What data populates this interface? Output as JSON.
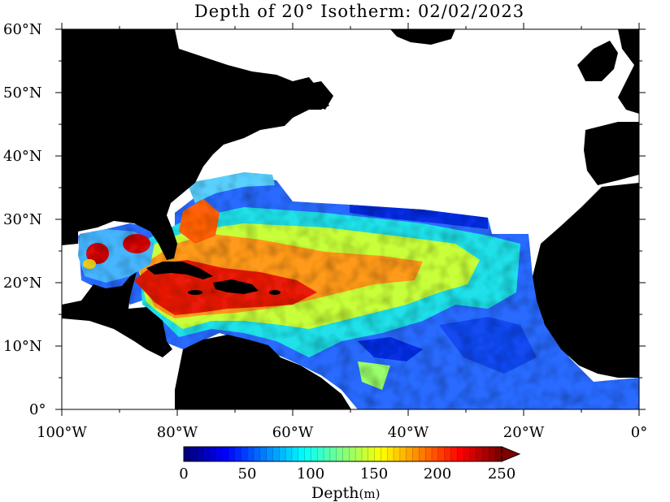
{
  "title": "Depth of 20° Isotherm: 02/02/2023",
  "y_axis_labels": [
    "60°N",
    "50°N",
    "40°N",
    "30°N",
    "20°N",
    "10°N",
    "0°"
  ],
  "x_axis_labels": [
    "100°W",
    "80°W",
    "60°W",
    "40°W",
    "20°W",
    "0°"
  ],
  "colorbar": {
    "tick_labels": [
      "0",
      "50",
      "100",
      "150",
      "200",
      "250"
    ],
    "title": "Depth",
    "unit": "(m)",
    "min": 0,
    "max": 250,
    "extend": "max",
    "colors": [
      "#000080",
      "#0000ff",
      "#0080ff",
      "#00ffff",
      "#80ff80",
      "#ffff00",
      "#ff8000",
      "#ff0000",
      "#800000"
    ]
  },
  "map": {
    "lon_range": [
      -100,
      0
    ],
    "lat_range": [
      0,
      60
    ],
    "land_color": "#000000",
    "no_data_color": "#ffffff",
    "features": [
      "land-north-america",
      "land-greenland",
      "land-europe",
      "land-africa",
      "land-south-america",
      "land-central-america",
      "land-cuba",
      "land-hispaniola"
    ]
  }
}
